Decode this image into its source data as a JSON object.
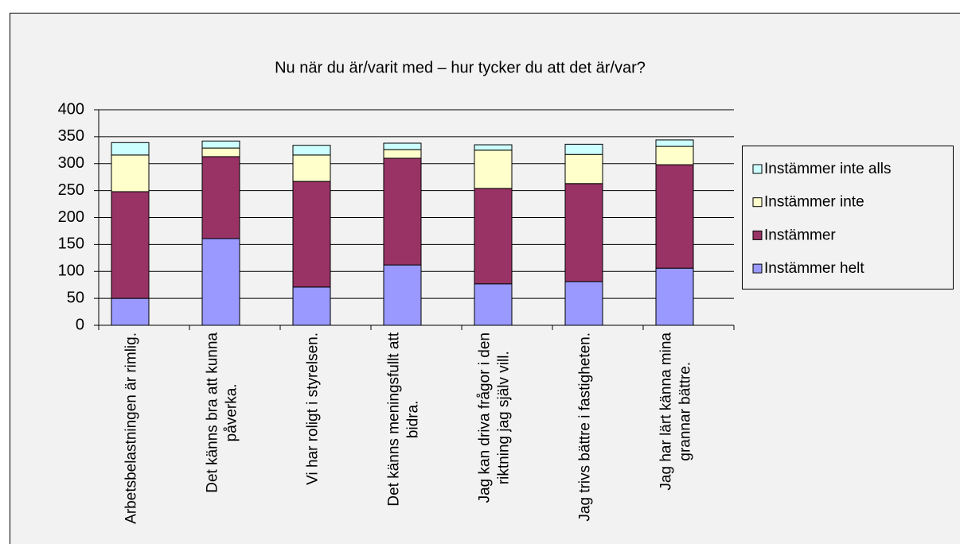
{
  "chart_data": {
    "type": "stacked_bar",
    "title": "Nu när du är/varit med – hur tycker du att det är/var?",
    "categories": [
      "Arbetsbelastningen är rimlig.",
      "Det känns bra att kunna påverka.",
      "Vi har roligt i styrelsen.",
      "Det känns meningsfullt att bidra.",
      "Jag kan driva frågor i den riktning jag själv vill.",
      "Jag trivs bättre i fastigheten.",
      "Jag har lärt känna mina grannar bättre."
    ],
    "series": [
      {
        "name": "Instämmer helt",
        "color": "#9999ff",
        "values": [
          50,
          161,
          71,
          112,
          77,
          81,
          106
        ]
      },
      {
        "name": "Instämmer",
        "color": "#993366",
        "values": [
          198,
          152,
          196,
          198,
          177,
          182,
          192
        ]
      },
      {
        "name": "Instämmer inte",
        "color": "#ffffcc",
        "values": [
          68,
          16,
          49,
          16,
          71,
          54,
          34
        ]
      },
      {
        "name": "Instämmer inte alls",
        "color": "#ccffff",
        "values": [
          23,
          13,
          18,
          12,
          10,
          19,
          12
        ]
      }
    ],
    "ylim": [
      0,
      400
    ],
    "yticks": [
      0,
      50,
      100,
      150,
      200,
      250,
      300,
      350,
      400
    ],
    "grid": true,
    "legend": "right"
  }
}
